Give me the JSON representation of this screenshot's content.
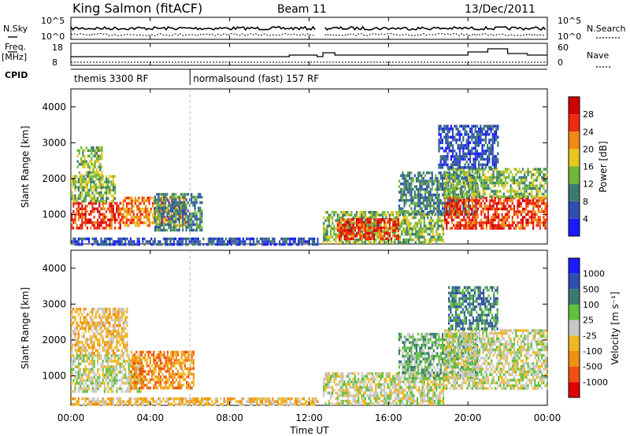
{
  "header": {
    "title": "King Salmon (fitACF)",
    "beam": "Beam 11",
    "date": "13/Dec/2011"
  },
  "side_labels": {
    "nsky": "N.Sky",
    "nsearch": "N.Search",
    "freq": "Freq.",
    "mhz": "[MHz]",
    "nave": "Nave",
    "cpid": "CPID"
  },
  "cpid_segments": [
    {
      "label": "themis 3300 RF",
      "start_hr": 0,
      "end_hr": 6
    },
    {
      "label": "normalsound (fast) 157 RF",
      "start_hr": 6,
      "end_hr": 24
    }
  ],
  "noise_axis": {
    "left_ticks": [
      "10^5",
      "10^0"
    ],
    "right_ticks": [
      "10^5",
      "10^0"
    ]
  },
  "freq_axis": {
    "left_ticks": [
      "18",
      "8"
    ],
    "right_ticks": [
      "60",
      "0"
    ]
  },
  "x_axis": {
    "label": "Time UT",
    "ticks": [
      "00:00",
      "04:00",
      "08:00",
      "12:00",
      "16:00",
      "20:00",
      "00:00"
    ],
    "range_hr": [
      0,
      24
    ]
  },
  "chart_data": [
    {
      "type": "heatmap",
      "name": "power",
      "ylabel": "Slant Range [km]",
      "yticks": [
        "1000",
        "2000",
        "3000",
        "4000"
      ],
      "ylim": [
        180,
        4500
      ],
      "colorbar": {
        "label": "Power [dB]",
        "tick_labels": [
          "4",
          "8",
          "12",
          "16",
          "20",
          "24",
          "28"
        ],
        "colors": [
          "#1a1aff",
          "#2f4fb0",
          "#3c7a70",
          "#6fb83a",
          "#e8c820",
          "#f08a10",
          "#ee2a10",
          "#d00000"
        ]
      },
      "regions": [
        {
          "t": [
            0.0,
            2.6
          ],
          "r": [
            650,
            1350
          ],
          "level": 6
        },
        {
          "t": [
            0.0,
            2.2
          ],
          "r": [
            1350,
            2100
          ],
          "level": 3
        },
        {
          "t": [
            0.3,
            1.6
          ],
          "r": [
            2100,
            2900
          ],
          "level": 3
        },
        {
          "t": [
            2.6,
            5.8
          ],
          "r": [
            700,
            1500
          ],
          "level": 5
        },
        {
          "t": [
            4.2,
            6.6
          ],
          "r": [
            600,
            1600
          ],
          "level": 2
        },
        {
          "t": [
            0.0,
            12.4
          ],
          "r": [
            180,
            360
          ],
          "level": 1
        },
        {
          "t": [
            12.7,
            18.8
          ],
          "r": [
            180,
            1100
          ],
          "level": 3
        },
        {
          "t": [
            13.4,
            16.5
          ],
          "r": [
            350,
            900
          ],
          "level": 6
        },
        {
          "t": [
            16.5,
            20.5
          ],
          "r": [
            1000,
            2200
          ],
          "level": 2
        },
        {
          "t": [
            18.8,
            24.0
          ],
          "r": [
            650,
            1500
          ],
          "level": 6
        },
        {
          "t": [
            18.8,
            24.0
          ],
          "r": [
            1500,
            2300
          ],
          "level": 3
        },
        {
          "t": [
            18.5,
            21.5
          ],
          "r": [
            2300,
            3500
          ],
          "level": 1
        }
      ]
    },
    {
      "type": "heatmap",
      "name": "velocity",
      "ylabel": "Slant Range [km]",
      "yticks": [
        "1000",
        "2000",
        "3000",
        "4000"
      ],
      "ylim": [
        180,
        4500
      ],
      "colorbar": {
        "label": "Velocity [m s⁻¹]",
        "tick_labels": [
          "-1000",
          "-500",
          "-100",
          "-25",
          "25",
          "100",
          "500",
          "1000"
        ],
        "colors": [
          "#e00000",
          "#f05010",
          "#f09010",
          "#f0b820",
          "#c8c8c8",
          "#60c040",
          "#3c7a70",
          "#2f4fb0",
          "#1a1aff"
        ]
      },
      "regions": [
        {
          "t": [
            0.0,
            3.5
          ],
          "r": [
            600,
            1600
          ],
          "level": 4
        },
        {
          "t": [
            0.0,
            2.8
          ],
          "r": [
            1600,
            2900
          ],
          "level": 3
        },
        {
          "t": [
            3.0,
            6.2
          ],
          "r": [
            700,
            1700
          ],
          "level": 2
        },
        {
          "t": [
            0.0,
            12.4
          ],
          "r": [
            180,
            400
          ],
          "level": 3
        },
        {
          "t": [
            12.7,
            18.8
          ],
          "r": [
            180,
            1100
          ],
          "level": 4
        },
        {
          "t": [
            16.5,
            20.5
          ],
          "r": [
            900,
            2200
          ],
          "level": 5
        },
        {
          "t": [
            18.8,
            24.0
          ],
          "r": [
            650,
            2300
          ],
          "level": 4
        },
        {
          "t": [
            19.0,
            21.5
          ],
          "r": [
            2300,
            3500
          ],
          "level": 6
        }
      ]
    }
  ]
}
